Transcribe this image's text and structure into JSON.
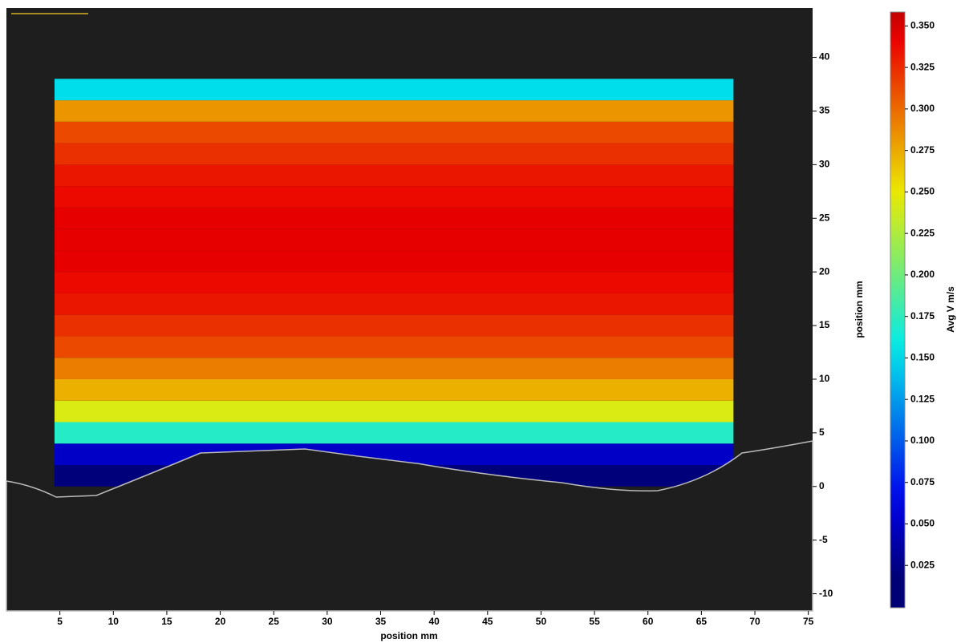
{
  "chart_data": {
    "type": "heatmap",
    "xlabel": "position mm",
    "ylabel": "position mm",
    "colorbar_label": "Avg V m/s",
    "xlim": [
      0,
      75.4
    ],
    "xticks": [
      5,
      10,
      15,
      20,
      25,
      30,
      35,
      40,
      45,
      50,
      55,
      60,
      65,
      70,
      75
    ],
    "ylim": [
      -11.6,
      44.6
    ],
    "yticks": [
      -10,
      -5,
      0,
      5,
      10,
      15,
      20,
      25,
      30,
      35,
      40
    ],
    "clim": [
      0,
      0.355
    ],
    "cticks": [
      {
        "value": 0.025,
        "label": "0.025"
      },
      {
        "value": 0.05,
        "label": "0.050"
      },
      {
        "value": 0.075,
        "label": "0.075"
      },
      {
        "value": 0.1,
        "label": "0.100"
      },
      {
        "value": 0.125,
        "label": "0.125"
      },
      {
        "value": 0.15,
        "label": "0.150"
      },
      {
        "value": 0.175,
        "label": "0.175"
      },
      {
        "value": 0.2,
        "label": "0.200"
      },
      {
        "value": 0.225,
        "label": "0.225"
      },
      {
        "value": 0.25,
        "label": "0.250"
      },
      {
        "value": 0.275,
        "label": "0.275"
      },
      {
        "value": 0.3,
        "label": "0.300"
      },
      {
        "value": 0.325,
        "label": "0.325"
      },
      {
        "value": 0.35,
        "label": "0.350"
      }
    ],
    "field_x": [
      4.5,
      68
    ],
    "y": [
      1,
      3,
      5,
      7,
      9,
      11,
      13,
      15,
      17,
      19,
      21,
      23,
      25,
      27,
      29,
      31,
      33,
      35,
      37
    ],
    "values": [
      0.02,
      0.05,
      0.17,
      0.24,
      0.27,
      0.29,
      0.31,
      0.32,
      0.33,
      0.335,
      0.34,
      0.34,
      0.34,
      0.335,
      0.33,
      0.32,
      0.31,
      0.28,
      0.15
    ]
  }
}
